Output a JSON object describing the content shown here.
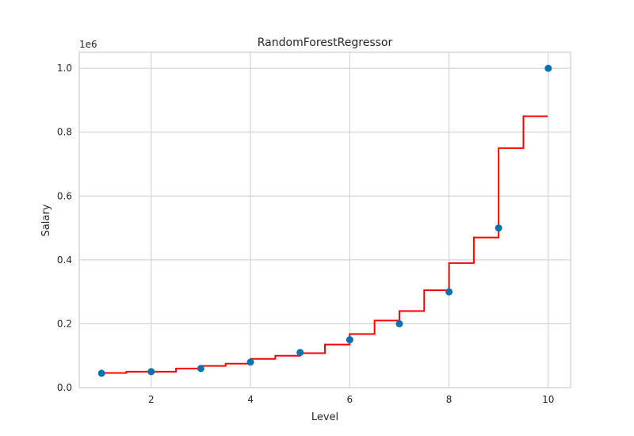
{
  "chart_data": {
    "type": "scatter",
    "title": "RandomForestRegressor",
    "xlabel": "Level",
    "ylabel": "Salary",
    "y_offset_label": "1e6",
    "xlim": [
      0.55,
      10.45
    ],
    "ylim": [
      0,
      1.05
    ],
    "x_ticks": [
      2,
      4,
      6,
      8,
      10
    ],
    "x_tick_labels": [
      "2",
      "4",
      "6",
      "8",
      "10"
    ],
    "y_ticks": [
      0.0,
      0.2,
      0.4,
      0.6,
      0.8,
      1.0
    ],
    "y_tick_labels": [
      "0.0",
      "0.2",
      "0.4",
      "0.6",
      "0.8",
      "1.0"
    ],
    "grid": true,
    "series": [
      {
        "kind": "scatter",
        "color": "#0072b2",
        "x": [
          1,
          2,
          3,
          4,
          5,
          6,
          7,
          8,
          9,
          10
        ],
        "y": [
          0.045,
          0.05,
          0.06,
          0.08,
          0.11,
          0.15,
          0.2,
          0.3,
          0.5,
          1.0
        ]
      },
      {
        "kind": "step",
        "color": "#ff0000",
        "x": [
          1.0,
          1.5,
          2.5,
          3.0,
          3.5,
          4.0,
          4.5,
          5.0,
          5.5,
          6.0,
          6.5,
          7.0,
          7.5,
          8.0,
          8.5,
          9.0,
          9.5,
          9.99
        ],
        "y": [
          0.046,
          0.05,
          0.06,
          0.068,
          0.075,
          0.09,
          0.1,
          0.108,
          0.135,
          0.168,
          0.21,
          0.24,
          0.305,
          0.39,
          0.47,
          0.75,
          0.85,
          0.85
        ]
      }
    ]
  }
}
